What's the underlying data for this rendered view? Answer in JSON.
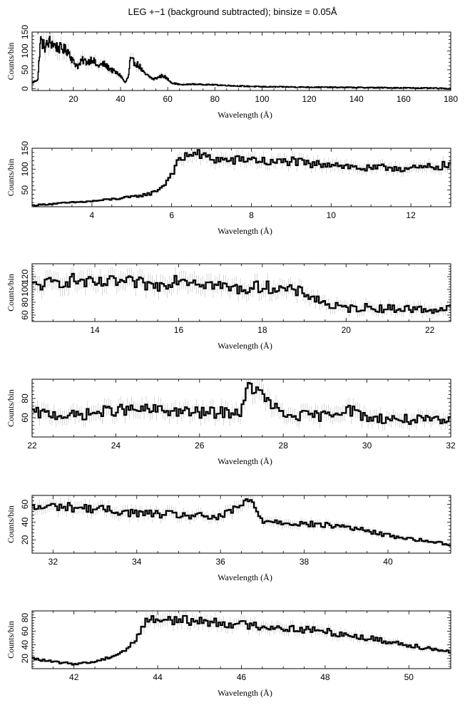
{
  "title": "LEG +−1 (background subtracted); binsize = 0.05Å",
  "colors": {
    "line": "#000000",
    "error_bars": "#bbbbbb",
    "background": "#ffffff"
  },
  "chart_data": [
    {
      "type": "line",
      "xlabel": "Wavelength (Å)",
      "ylabel": "Counts/bin",
      "xlim": [
        2.5,
        180
      ],
      "ylim": [
        -5,
        150
      ],
      "xticks": [
        20,
        40,
        60,
        80,
        100,
        120,
        140,
        160,
        180
      ],
      "yticks": [
        0,
        50,
        100,
        150
      ],
      "series": [
        {
          "x": [
            2.5,
            5,
            6,
            8,
            10,
            13,
            18,
            20,
            22,
            24,
            26,
            28,
            30,
            33,
            36,
            40,
            42,
            43.5,
            44,
            46,
            48,
            50,
            54,
            58,
            62,
            66,
            70,
            80,
            90,
            100,
            120,
            140,
            160,
            175,
            180
          ],
          "y": [
            15,
            25,
            130,
            110,
            125,
            110,
            100,
            70,
            60,
            75,
            70,
            80,
            60,
            65,
            50,
            35,
            15,
            35,
            75,
            70,
            60,
            40,
            25,
            35,
            15,
            10,
            12,
            10,
            7,
            5,
            4,
            3,
            2,
            1,
            0
          ]
        }
      ]
    },
    {
      "type": "line",
      "xlabel": "Wavelength (Å)",
      "ylabel": "Counts/bin",
      "xlim": [
        2.5,
        13
      ],
      "ylim": [
        10,
        150
      ],
      "xticks": [
        4,
        6,
        8,
        10,
        12
      ],
      "yticks": [
        50,
        100,
        150
      ],
      "series": [
        {
          "x": [
            2.5,
            3,
            3.5,
            4,
            4.5,
            5,
            5.5,
            5.8,
            6.0,
            6.2,
            6.5,
            7,
            7.5,
            8,
            8.5,
            9,
            9.5,
            10,
            10.5,
            11,
            11.5,
            12,
            12.5,
            13
          ],
          "y": [
            13,
            17,
            20,
            23,
            28,
            33,
            42,
            60,
            90,
            120,
            140,
            125,
            120,
            125,
            115,
            120,
            110,
            115,
            105,
            100,
            105,
            100,
            105,
            110
          ]
        }
      ]
    },
    {
      "type": "line",
      "xlabel": "Wavelength (Å)",
      "ylabel": "Counts/bin",
      "xlim": [
        12.5,
        22.5
      ],
      "ylim": [
        50,
        140
      ],
      "xticks": [
        14,
        16,
        18,
        20,
        22
      ],
      "yticks": [
        60,
        80,
        100,
        120
      ],
      "series": [
        {
          "x": [
            12.5,
            13,
            13.5,
            14,
            14.5,
            15,
            15.5,
            16,
            16.5,
            17,
            17.5,
            18,
            18.5,
            19,
            19.3,
            19.6,
            20,
            20.5,
            21,
            21.5,
            22,
            22.5
          ],
          "y": [
            105,
            110,
            115,
            108,
            112,
            110,
            105,
            118,
            112,
            105,
            100,
            105,
            100,
            95,
            85,
            75,
            70,
            72,
            70,
            70,
            68,
            70
          ]
        }
      ]
    },
    {
      "type": "line",
      "xlabel": "Wavelength (Å)",
      "ylabel": "Counts/bin",
      "xlim": [
        22,
        32
      ],
      "ylim": [
        40,
        100
      ],
      "xticks": [
        22,
        24,
        26,
        28,
        30,
        32
      ],
      "yticks": [
        60,
        80
      ],
      "series": [
        {
          "x": [
            22,
            23,
            24,
            25,
            26,
            27,
            27.2,
            28,
            29,
            29.5,
            30,
            31,
            32
          ],
          "y": [
            65,
            62,
            68,
            68,
            65,
            66,
            95,
            62,
            62,
            70,
            60,
            58,
            56
          ]
        }
      ]
    },
    {
      "type": "line",
      "xlabel": "Wavelength (Å)",
      "ylabel": "Counts/bin",
      "xlim": [
        31.5,
        41.5
      ],
      "ylim": [
        5,
        70
      ],
      "xticks": [
        32,
        34,
        36,
        38,
        40
      ],
      "yticks": [
        20,
        40,
        60
      ],
      "series": [
        {
          "x": [
            31.5,
            32,
            33,
            34,
            35,
            36,
            36.7,
            37,
            38,
            39,
            40,
            41,
            41.5
          ],
          "y": [
            55,
            58,
            55,
            50,
            48,
            45,
            65,
            42,
            38,
            35,
            25,
            18,
            15
          ]
        }
      ]
    },
    {
      "type": "line",
      "xlabel": "Wavelength (Å)",
      "ylabel": "Counts/bin",
      "xlim": [
        41,
        51
      ],
      "ylim": [
        5,
        90
      ],
      "xticks": [
        42,
        44,
        46,
        48,
        50
      ],
      "yticks": [
        20,
        40,
        60,
        80
      ],
      "series": [
        {
          "x": [
            41,
            41.5,
            42,
            42.5,
            43,
            43.3,
            43.5,
            43.7,
            44,
            45,
            46,
            47,
            48,
            49,
            50,
            51
          ],
          "y": [
            20,
            15,
            12,
            15,
            25,
            35,
            50,
            75,
            78,
            75,
            70,
            65,
            60,
            50,
            40,
            30
          ]
        }
      ]
    }
  ]
}
